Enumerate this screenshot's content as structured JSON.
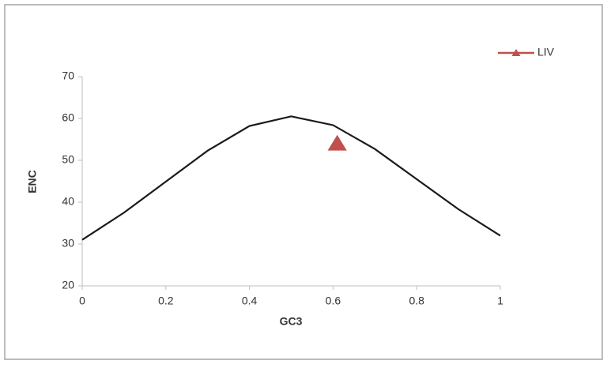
{
  "chart_data": {
    "type": "line",
    "x": [
      0,
      0.1,
      0.2,
      0.3,
      0.4,
      0.5,
      0.6,
      0.7,
      0.8,
      0.9,
      1
    ],
    "series": [
      {
        "values": [
          31,
          37.5,
          44.9,
          52.3,
          58.2,
          60.5,
          58.4,
          52.7,
          45.5,
          38.3,
          32
        ],
        "color": "#1a1a1a"
      },
      {
        "name": "LIV",
        "type": "scatter",
        "marker": "triangle",
        "color": "#c0504d",
        "x": [
          0.61
        ],
        "values": [
          54
        ]
      }
    ],
    "xlim": [
      0,
      1
    ],
    "xticks": [
      0,
      0.2,
      0.4,
      0.6,
      0.8,
      1
    ],
    "ylim": [
      20,
      70
    ],
    "yticks": [
      20,
      30,
      40,
      50,
      60,
      70
    ],
    "xlabel": "GC3",
    "ylabel": "ENC",
    "grid": false,
    "legend": "top-right"
  }
}
